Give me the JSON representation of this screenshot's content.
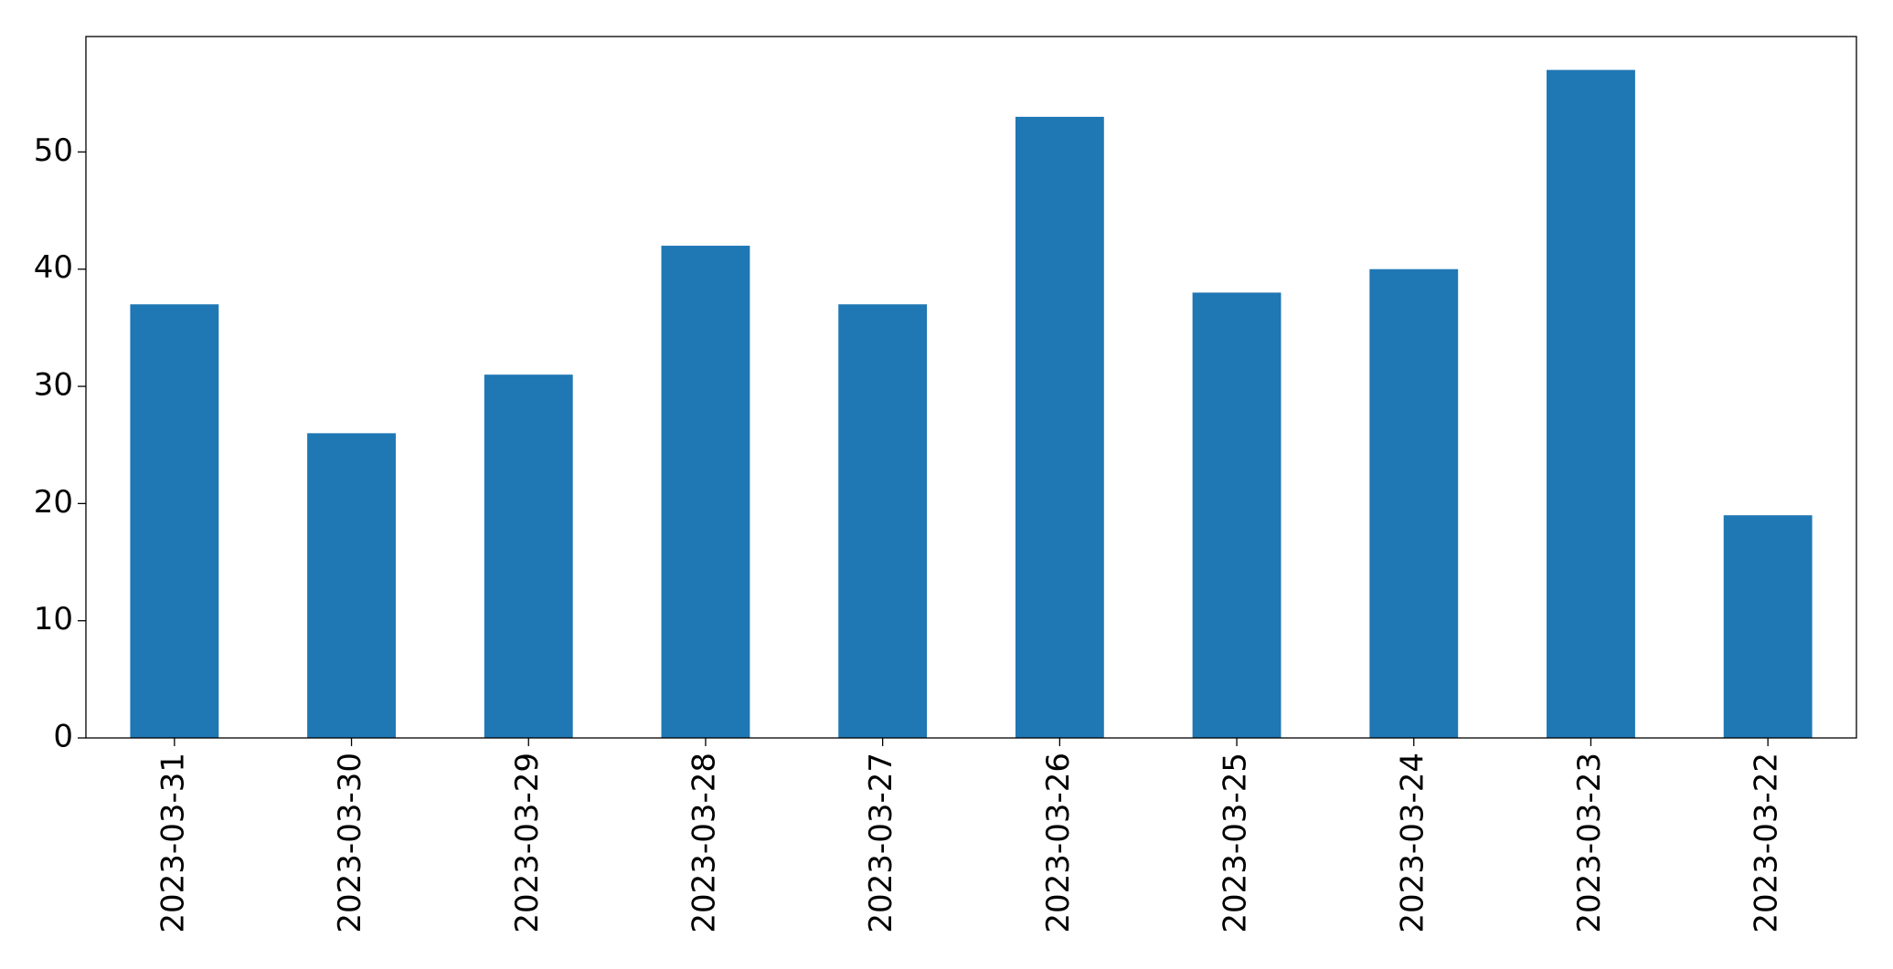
{
  "chart_data": {
    "type": "bar",
    "categories": [
      "2023-03-31",
      "2023-03-30",
      "2023-03-29",
      "2023-03-28",
      "2023-03-27",
      "2023-03-26",
      "2023-03-25",
      "2023-03-24",
      "2023-03-23",
      "2023-03-22"
    ],
    "values": [
      37,
      26,
      31,
      42,
      37,
      53,
      38,
      40,
      57,
      19
    ],
    "color": "#1f77b4",
    "ylim": [
      0,
      59.85
    ],
    "yticks": [
      0,
      10,
      20,
      30,
      40,
      50
    ],
    "grid": false
  }
}
